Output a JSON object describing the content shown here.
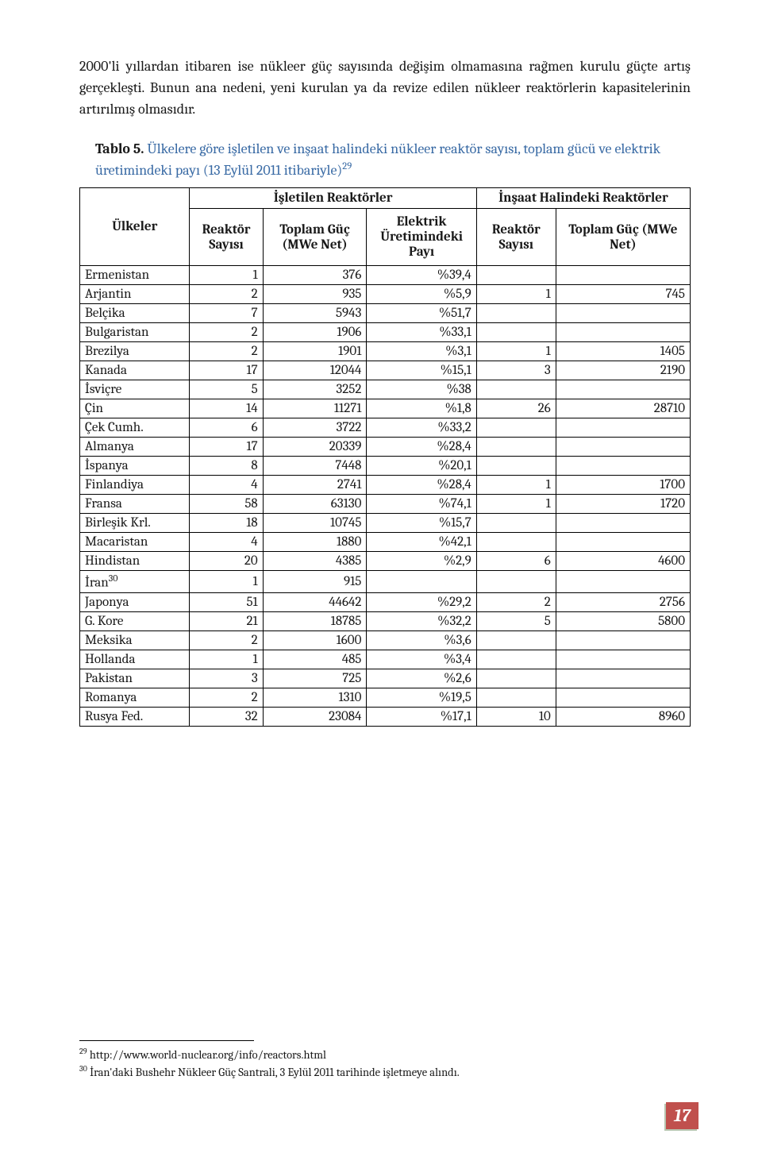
{
  "intro": "2000'li yıllardan itibaren ise nükleer güç sayısında değişim olmamasına rağmen kurulu güçte artış gerçekleşti. Bunun ana nedeni, yeni kurulan ya da revize edilen nükleer reaktörlerin kapasitelerinin artırılmış olmasıdır.",
  "caption": {
    "lead": "Tablo 5.",
    "title_part1": "Ülkelere göre işletilen ve inşaat halindeki nükleer reaktör sayısı, toplam gücü ve elektrik üretimindeki payı (13 Eylül 2011 itibariyle)",
    "title_sup": "29"
  },
  "headers": {
    "countries": "Ülkeler",
    "operating": "İşletilen Reaktörler",
    "construction": "İnşaat Halindeki Reaktörler",
    "reactor_count": "Reaktör Sayısı",
    "total_power": "Toplam Güç (MWe Net)",
    "elec_share": "Elektrik Üretimindeki Payı"
  },
  "columns": {
    "widths_pct": [
      18,
      12,
      17,
      18,
      13,
      22
    ]
  },
  "rows": [
    {
      "label": "Ermenistan",
      "op_n": "1",
      "op_mw": "376",
      "share": "%39,4",
      "c_n": "",
      "c_mw": ""
    },
    {
      "label": "Arjantin",
      "op_n": "2",
      "op_mw": "935",
      "share": "%5,9",
      "c_n": "1",
      "c_mw": "745"
    },
    {
      "label": "Belçika",
      "op_n": "7",
      "op_mw": "5943",
      "share": "%51,7",
      "c_n": "",
      "c_mw": ""
    },
    {
      "label": "Bulgaristan",
      "op_n": "2",
      "op_mw": "1906",
      "share": "%33,1",
      "c_n": "",
      "c_mw": ""
    },
    {
      "label": "Brezilya",
      "op_n": "2",
      "op_mw": "1901",
      "share": "%3,1",
      "c_n": "1",
      "c_mw": "1405"
    },
    {
      "label": "Kanada",
      "op_n": "17",
      "op_mw": "12044",
      "share": "%15,1",
      "c_n": "3",
      "c_mw": "2190"
    },
    {
      "label": "İsviçre",
      "op_n": "5",
      "op_mw": "3252",
      "share": "%38",
      "c_n": "",
      "c_mw": ""
    },
    {
      "label": "Çin",
      "op_n": "14",
      "op_mw": "11271",
      "share": "%1,8",
      "c_n": "26",
      "c_mw": "28710"
    },
    {
      "label": "Çek Cumh.",
      "op_n": "6",
      "op_mw": "3722",
      "share": "%33,2",
      "c_n": "",
      "c_mw": ""
    },
    {
      "label": "Almanya",
      "op_n": "17",
      "op_mw": "20339",
      "share": "%28,4",
      "c_n": "",
      "c_mw": ""
    },
    {
      "label": "İspanya",
      "op_n": "8",
      "op_mw": "7448",
      "share": "%20,1",
      "c_n": "",
      "c_mw": ""
    },
    {
      "label": "Finlandiya",
      "op_n": "4",
      "op_mw": "2741",
      "share": "%28,4",
      "c_n": "1",
      "c_mw": "1700"
    },
    {
      "label": "Fransa",
      "op_n": "58",
      "op_mw": "63130",
      "share": "%74,1",
      "c_n": "1",
      "c_mw": "1720"
    },
    {
      "label": "Birleşik Krl.",
      "op_n": "18",
      "op_mw": "10745",
      "share": "%15,7",
      "c_n": "",
      "c_mw": ""
    },
    {
      "label": "Macaristan",
      "op_n": "4",
      "op_mw": "1880",
      "share": "%42,1",
      "c_n": "",
      "c_mw": ""
    },
    {
      "label": "Hindistan",
      "op_n": "20",
      "op_mw": "4385",
      "share": "%2,9",
      "c_n": "6",
      "c_mw": "4600"
    },
    {
      "label": "İran",
      "label_sup": "30",
      "op_n": "1",
      "op_mw": "915",
      "share": "",
      "c_n": "",
      "c_mw": ""
    },
    {
      "label": "Japonya",
      "op_n": "51",
      "op_mw": "44642",
      "share": "%29,2",
      "c_n": "2",
      "c_mw": "2756"
    },
    {
      "label": "G. Kore",
      "op_n": "21",
      "op_mw": "18785",
      "share": "%32,2",
      "c_n": "5",
      "c_mw": "5800"
    },
    {
      "label": "Meksika",
      "op_n": "2",
      "op_mw": "1600",
      "share": "%3,6",
      "c_n": "",
      "c_mw": ""
    },
    {
      "label": "Hollanda",
      "op_n": "1",
      "op_mw": "485",
      "share": "%3,4",
      "c_n": "",
      "c_mw": ""
    },
    {
      "label": "Pakistan",
      "op_n": "3",
      "op_mw": "725",
      "share": "%2,6",
      "c_n": "",
      "c_mw": ""
    },
    {
      "label": "Romanya",
      "op_n": "2",
      "op_mw": "1310",
      "share": "%19,5",
      "c_n": "",
      "c_mw": ""
    },
    {
      "label": "Rusya Fed.",
      "op_n": "32",
      "op_mw": "23084",
      "share": "%17,1",
      "c_n": "10",
      "c_mw": "8960"
    }
  ],
  "footnotes": {
    "f29_sup": "29",
    "f29_text": " http://www.world-nuclear.org/info/reactors.html",
    "f30_sup": "30",
    "f30_text": " İran'daki Bushehr Nükleer Güç Santrali, 3 Eylül 2011 tarihinde işletmeye alındı."
  },
  "page_number": "17",
  "colors": {
    "caption_title": "#3a6ba5",
    "page_num_bg": "#c0504d",
    "page_num_shadow": "#b7c5b0",
    "text": "#1a1a1a",
    "border": "#000000",
    "background": "#ffffff"
  }
}
